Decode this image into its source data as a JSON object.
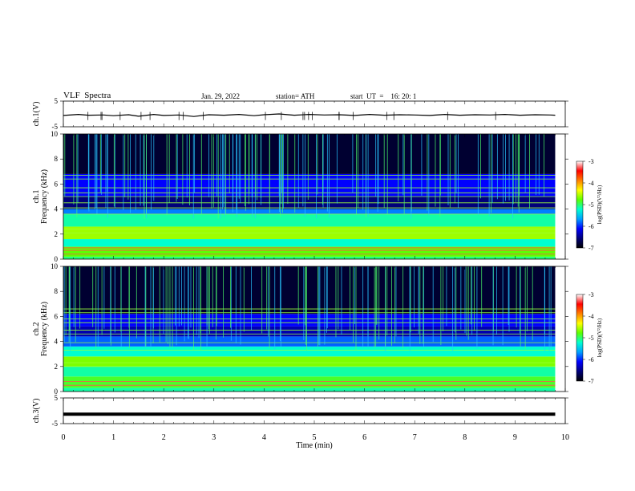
{
  "header": {
    "title": "VLF  Spectra",
    "date": "Jan. 29, 2022",
    "station": "station= ATH",
    "start": "start  UT  =    16: 20: 1"
  },
  "chart_data": [
    {
      "type": "line",
      "name": "ch1-waveform",
      "ylabel": "ch.1(V)",
      "ylim": [
        -5,
        5
      ],
      "yticks": [
        "5",
        "-5"
      ],
      "xlim": [
        0,
        10
      ],
      "x": [
        0,
        0.3,
        0.5,
        0.8,
        1.0,
        1.3,
        1.5,
        1.8,
        2.0,
        2.3,
        2.6,
        2.9,
        3.2,
        3.5,
        3.8,
        4.0,
        4.3,
        4.6,
        4.9,
        5.2,
        5.5,
        5.8,
        6.1,
        6.4,
        6.7,
        7.0,
        7.3,
        7.6,
        7.9,
        8.2,
        8.5,
        8.8,
        9.1,
        9.4,
        9.7,
        9.8
      ],
      "y": [
        -0.6,
        -0.2,
        -0.5,
        -0.4,
        -0.7,
        -0.3,
        -0.9,
        -0.2,
        -0.6,
        -0.4,
        -1.0,
        -0.3,
        -0.5,
        -0.2,
        -0.7,
        -0.3,
        0.0,
        -0.5,
        -0.2,
        -0.4,
        -0.3,
        -0.6,
        -0.2,
        -0.5,
        -0.3,
        -0.4,
        -0.6,
        -0.2,
        -0.5,
        -0.3,
        -0.4,
        -0.2,
        -0.5,
        -0.3,
        -0.4,
        -0.5
      ]
    },
    {
      "type": "heatmap",
      "name": "ch1-spectrogram",
      "ylabel": "ch.1\nFrequency (kHz)",
      "ylim": [
        0,
        10
      ],
      "yticks": [
        "0",
        "2",
        "4",
        "6",
        "8",
        "10"
      ],
      "xlim": [
        0,
        10
      ],
      "data_end_min": 9.8,
      "colorbar": {
        "label": "log(PSD)(V²/Hz)",
        "range": [
          -7,
          -3
        ],
        "ticks": [
          "-3",
          "-4",
          "-5",
          "-6",
          "-7"
        ]
      },
      "bands_khz_log_psd": [
        {
          "from": 0.0,
          "to": 0.2,
          "value": -4.8
        },
        {
          "from": 0.2,
          "to": 1.0,
          "value": -4.5
        },
        {
          "from": 1.0,
          "to": 1.6,
          "value": -5.0
        },
        {
          "from": 1.6,
          "to": 2.6,
          "value": -4.3
        },
        {
          "from": 2.6,
          "to": 3.6,
          "value": -4.9
        },
        {
          "from": 3.6,
          "to": 4.0,
          "value": -5.6
        },
        {
          "from": 4.0,
          "to": 5.0,
          "value": -6.5
        },
        {
          "from": 5.0,
          "to": 6.8,
          "value": -6.0
        },
        {
          "from": 6.8,
          "to": 10.0,
          "value": -6.8
        }
      ],
      "tone_lines_khz": [
        0.4,
        0.7,
        0.9,
        2.1,
        2.4,
        3.6,
        4.1,
        4.5,
        5.0,
        5.3,
        5.7,
        6.4,
        6.7
      ]
    },
    {
      "type": "heatmap",
      "name": "ch2-spectrogram",
      "ylabel": "ch.2\nFrequency (kHz)",
      "ylim": [
        0,
        10
      ],
      "yticks": [
        "0",
        "2",
        "4",
        "6",
        "8",
        "10"
      ],
      "xlim": [
        0,
        10
      ],
      "data_end_min": 9.8,
      "colorbar": {
        "label": "log(PSD)(V²/Hz)",
        "range": [
          -7,
          -3
        ],
        "ticks": [
          "-3",
          "-4",
          "-5",
          "-6",
          "-7"
        ]
      },
      "bands_khz_log_psd": [
        {
          "from": 0.0,
          "to": 0.3,
          "value": -4.9
        },
        {
          "from": 0.3,
          "to": 1.2,
          "value": -4.6
        },
        {
          "from": 1.2,
          "to": 2.0,
          "value": -4.9
        },
        {
          "from": 2.0,
          "to": 2.8,
          "value": -4.4
        },
        {
          "from": 2.8,
          "to": 3.6,
          "value": -5.0
        },
        {
          "from": 3.6,
          "to": 4.4,
          "value": -5.7
        },
        {
          "from": 4.4,
          "to": 5.2,
          "value": -6.3
        },
        {
          "from": 5.2,
          "to": 6.2,
          "value": -6.0
        },
        {
          "from": 6.2,
          "to": 10.0,
          "value": -6.8
        }
      ],
      "tone_lines_khz": [
        0.5,
        0.8,
        2.0,
        2.3,
        3.3,
        3.9,
        4.6,
        4.9,
        5.5,
        5.8,
        6.3,
        6.6
      ]
    },
    {
      "type": "line",
      "name": "ch3-waveform",
      "ylabel": "ch.3(V)",
      "ylim": [
        -5,
        5
      ],
      "yticks": [
        "5",
        "-5"
      ],
      "xlim": [
        0,
        10
      ],
      "x": [
        0,
        9.8
      ],
      "y": [
        -1.3,
        -1.3
      ]
    }
  ],
  "x_axis": {
    "label": "Time  (min)",
    "ticks": [
      "0",
      "1",
      "2",
      "3",
      "4",
      "5",
      "6",
      "7",
      "8",
      "9",
      "10"
    ]
  },
  "colors": {
    "colormap": [
      "#000000",
      "#00007a",
      "#0000ff",
      "#00a0ff",
      "#00ffd0",
      "#5cff00",
      "#ffff00",
      "#ff8000",
      "#ff0000",
      "#ffffff"
    ],
    "tone_line": "#9cff3a",
    "axis": "#000000"
  }
}
